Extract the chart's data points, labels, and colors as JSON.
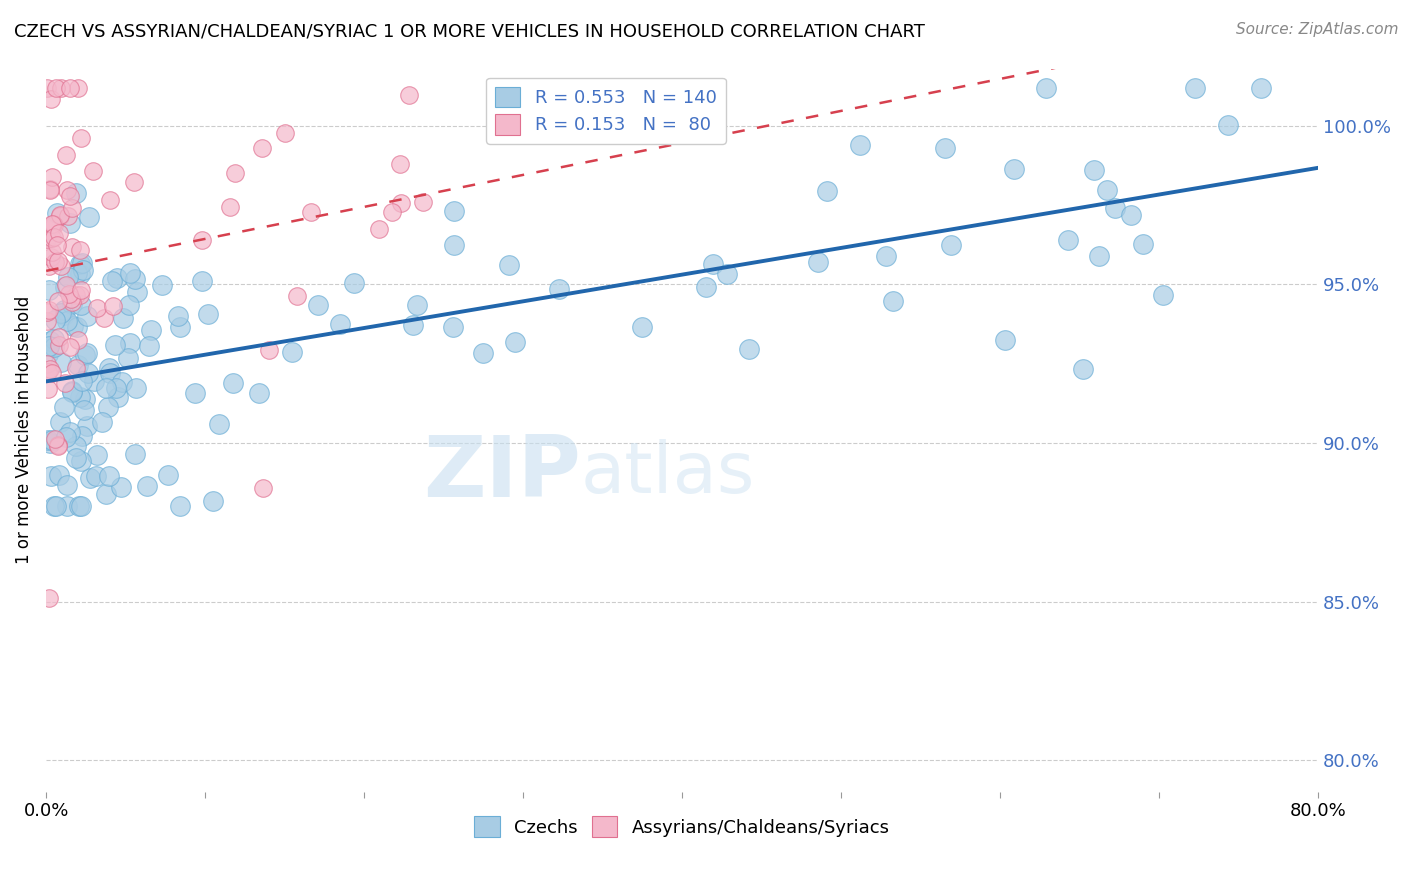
{
  "title": "CZECH VS ASSYRIAN/CHALDEAN/SYRIAC 1 OR MORE VEHICLES IN HOUSEHOLD CORRELATION CHART",
  "source": "Source: ZipAtlas.com",
  "ylabel": "1 or more Vehicles in Household",
  "ytick_vals": [
    80.0,
    85.0,
    90.0,
    95.0,
    100.0
  ],
  "xmin": 0.0,
  "xmax": 80.0,
  "ymin": 79.0,
  "ymax": 101.8,
  "watermark_zip": "ZIP",
  "watermark_atlas": "atlas",
  "blue_color": "#a8cce4",
  "blue_edge_color": "#6baed6",
  "pink_color": "#f4b8cb",
  "pink_edge_color": "#e07090",
  "blue_line_color": "#2166ac",
  "pink_line_color": "#d6404e",
  "blue_R": 0.553,
  "blue_N": 140,
  "pink_R": 0.153,
  "pink_N": 80,
  "legend_blue_label": "R = 0.553   N = 140",
  "legend_pink_label": "R = 0.153   N =  80",
  "label_czechs": "Czechs",
  "label_assyrians": "Assyrians/Chaldeans/Syriacs",
  "title_fontsize": 13,
  "source_fontsize": 11,
  "tick_fontsize": 13,
  "ylabel_fontsize": 12,
  "legend_fontsize": 13
}
